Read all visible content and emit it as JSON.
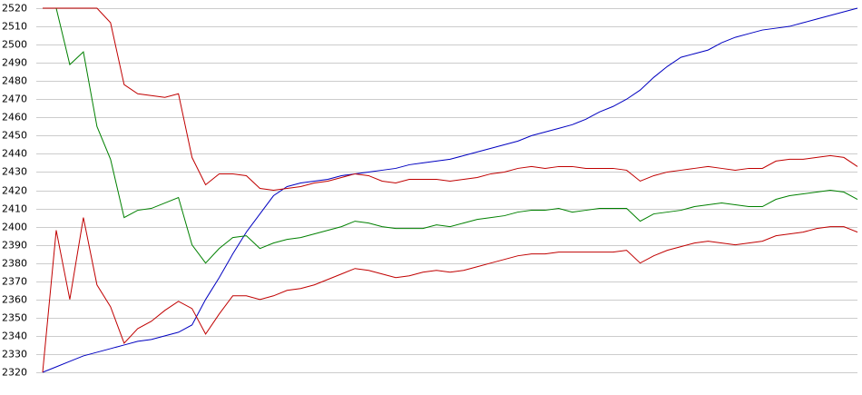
{
  "chart_data": {
    "type": "line",
    "categories": [
      null,
      null,
      null,
      null,
      null,
      null,
      null,
      null,
      null,
      null,
      null,
      null,
      null,
      null,
      null,
      null,
      null,
      null,
      null,
      null,
      null,
      null,
      null,
      null,
      null,
      null,
      null,
      null,
      null,
      null,
      null,
      null,
      null,
      null,
      null,
      null,
      null,
      null,
      null,
      null,
      null,
      null,
      null,
      null,
      null,
      null,
      null,
      null,
      null,
      null,
      null,
      null,
      null,
      null,
      null,
      null,
      null,
      null,
      null,
      null,
      null
    ],
    "series": [
      {
        "color": "#0000c0",
        "values": [
          2320,
          2323,
          2326,
          2329,
          2331,
          2333,
          2335,
          2337,
          2338,
          2340,
          2342,
          2346,
          2360,
          2372,
          2385,
          2397,
          2407,
          2417,
          2422,
          2424,
          2425,
          2426,
          2428,
          2429,
          2430,
          2431,
          2432,
          2434,
          2435,
          2436,
          2437,
          2439,
          2441,
          2443,
          2445,
          2447,
          2450,
          2452,
          2454,
          2456,
          2459,
          2463,
          2466,
          2470,
          2475,
          2482,
          2488,
          2493,
          2495,
          2497,
          2501,
          2504,
          2506,
          2508,
          2509,
          2510,
          2512,
          2514,
          2516,
          2518,
          2520
        ]
      },
      {
        "color": "#008000",
        "values": [
          2520,
          2520,
          2489,
          2496,
          2455,
          2437,
          2405,
          2409,
          2410,
          2413,
          2416,
          2390,
          2380,
          2388,
          2394,
          2395,
          2388,
          2391,
          2393,
          2394,
          2396,
          2398,
          2400,
          2403,
          2402,
          2400,
          2399,
          2399,
          2399,
          2401,
          2400,
          2402,
          2404,
          2405,
          2406,
          2408,
          2409,
          2409,
          2410,
          2408,
          2409,
          2410,
          2410,
          2410,
          2403,
          2407,
          2408,
          2409,
          2411,
          2412,
          2413,
          2412,
          2411,
          2411,
          2415,
          2417,
          2418,
          2419,
          2420,
          2419,
          2415
        ]
      },
      {
        "color": "#c00000",
        "values": [
          2520,
          2520,
          2520,
          2520,
          2520,
          2512,
          2478,
          2473,
          2472,
          2471,
          2473,
          2438,
          2423,
          2429,
          2429,
          2428,
          2421,
          2420,
          2421,
          2422,
          2424,
          2425,
          2427,
          2429,
          2428,
          2425,
          2424,
          2426,
          2426,
          2426,
          2425,
          2426,
          2427,
          2429,
          2430,
          2432,
          2433,
          2432,
          2433,
          2433,
          2432,
          2432,
          2432,
          2431,
          2425,
          2428,
          2430,
          2431,
          2432,
          2433,
          2432,
          2431,
          2432,
          2432,
          2436,
          2437,
          2437,
          2438,
          2439,
          2438,
          2433
        ]
      },
      {
        "color": "#c00000",
        "values": [
          2320,
          2398,
          2360,
          2405,
          2368,
          2356,
          2336,
          2344,
          2348,
          2354,
          2359,
          2355,
          2341,
          2352,
          2362,
          2362,
          2360,
          2362,
          2365,
          2366,
          2368,
          2371,
          2374,
          2377,
          2376,
          2374,
          2372,
          2373,
          2375,
          2376,
          2375,
          2376,
          2378,
          2380,
          2382,
          2384,
          2385,
          2385,
          2386,
          2386,
          2386,
          2386,
          2386,
          2387,
          2380,
          2384,
          2387,
          2389,
          2391,
          2392,
          2391,
          2390,
          2391,
          2392,
          2395,
          2396,
          2397,
          2399,
          2400,
          2400,
          2397
        ]
      }
    ],
    "ylim": [
      2320,
      2520
    ],
    "yticks": [
      2320,
      2330,
      2340,
      2350,
      2360,
      2370,
      2380,
      2390,
      2400,
      2410,
      2420,
      2430,
      2440,
      2450,
      2460,
      2470,
      2480,
      2490,
      2500,
      2510,
      2520
    ],
    "grid": true
  }
}
